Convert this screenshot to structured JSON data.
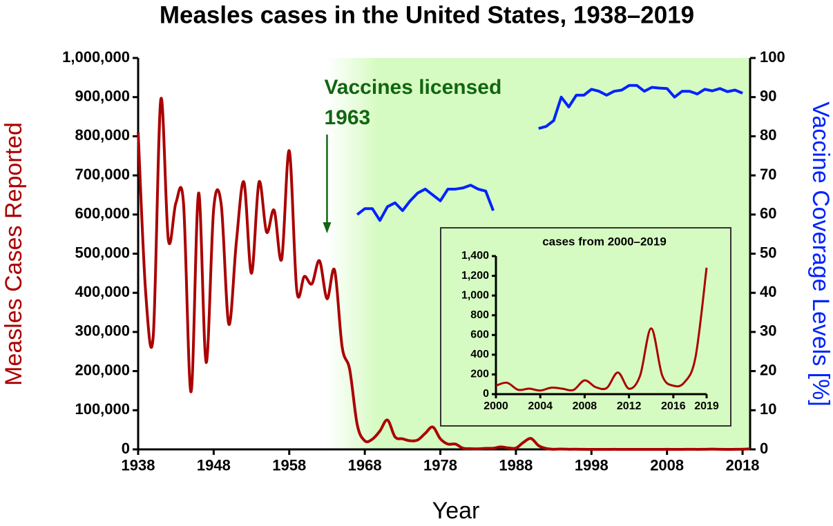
{
  "chart_data": [
    {
      "type": "line",
      "title": "Measles cases in the United States, 1938–2019",
      "xlabel": "Year",
      "ylabel": "Measles Cases Reported",
      "y2label": "Vaccine Coverage Levels [%]",
      "annotation": {
        "text": "Vaccines licensed",
        "year": 1963
      },
      "x": [
        1938,
        1939,
        1940,
        1941,
        1942,
        1943,
        1944,
        1945,
        1946,
        1947,
        1948,
        1949,
        1950,
        1951,
        1952,
        1953,
        1954,
        1955,
        1956,
        1957,
        1958,
        1959,
        1960,
        1961,
        1962,
        1963,
        1964,
        1965,
        1966,
        1967,
        1968,
        1969,
        1970,
        1971,
        1972,
        1973,
        1974,
        1975,
        1976,
        1977,
        1978,
        1979,
        1980,
        1981,
        1982,
        1983,
        1984,
        1985,
        1986,
        1987,
        1988,
        1989,
        1990,
        1991,
        1992,
        1993,
        1994,
        1995,
        1996,
        1997,
        1998,
        1999,
        2000,
        2001,
        2002,
        2003,
        2004,
        2005,
        2006,
        2007,
        2008,
        2009,
        2010,
        2011,
        2012,
        2013,
        2014,
        2015,
        2016,
        2017,
        2018,
        2019
      ],
      "xlim": [
        1938,
        2019
      ],
      "xticks": [
        1938,
        1948,
        1958,
        1968,
        1978,
        1988,
        1998,
        2008,
        2018
      ],
      "ylim": [
        0,
        1000000
      ],
      "yticks": [
        0,
        {
          "value": 100000,
          "label": "100,000"
        },
        {
          "value": 200000,
          "label": "200,000"
        },
        {
          "value": 300000,
          "label": "300,000"
        },
        {
          "value": 400000,
          "label": "400,000"
        },
        {
          "value": 500000,
          "label": "500,000"
        },
        {
          "value": 600000,
          "label": "600,000"
        },
        {
          "value": 700000,
          "label": "700,000"
        },
        {
          "value": 800000,
          "label": "800,000"
        },
        {
          "value": 900000,
          "label": "900,000"
        },
        {
          "value": 1000000,
          "label": "1,000,000"
        }
      ],
      "y2lim": [
        0,
        100
      ],
      "y2ticks": [
        0,
        10,
        20,
        30,
        40,
        50,
        60,
        70,
        80,
        90,
        100
      ],
      "series": [
        {
          "color": "#aa0000",
          "values": [
            810000,
            400000,
            290000,
            894000,
            535000,
            630000,
            630000,
            147000,
            655000,
            222000,
            615000,
            625000,
            320000,
            530000,
            683000,
            450000,
            683000,
            555000,
            611000,
            486000,
            763000,
            406000,
            442000,
            423000,
            482000,
            385000,
            458000,
            262000,
            204000,
            63000,
            22000,
            26000,
            47000,
            75000,
            32000,
            27000,
            22000,
            24000,
            41000,
            57000,
            27000,
            13600,
            13500,
            3000,
            1700,
            1500,
            2600,
            2800,
            6300,
            3700,
            3400,
            18000,
            27800,
            9600,
            2200,
            300,
            960,
            300,
            500,
            138,
            100,
            100,
            86,
            116,
            44,
            56,
            37,
            66,
            55,
            43,
            140,
            71,
            63,
            220,
            55,
            187,
            667,
            188,
            86,
            120,
            375,
            1282
          ]
        },
        {
          "color": "#0022ff",
          "axis": "y2",
          "values": [
            null,
            null,
            null,
            null,
            null,
            null,
            null,
            null,
            null,
            null,
            null,
            null,
            null,
            null,
            null,
            null,
            null,
            null,
            null,
            null,
            null,
            null,
            null,
            null,
            null,
            null,
            null,
            null,
            null,
            60,
            61.5,
            61.5,
            58.5,
            62,
            63,
            61,
            63.5,
            65.5,
            66.5,
            65,
            63.5,
            66.5,
            66.5,
            66.8,
            67.5,
            66.5,
            66,
            61,
            null,
            null,
            null,
            null,
            null,
            82,
            82.5,
            84,
            90,
            87.5,
            90.5,
            90.5,
            92,
            91.5,
            90.5,
            91.5,
            91.8,
            93,
            93,
            91.5,
            92.5,
            92.3,
            92.2,
            90,
            91.5,
            91.5,
            90.8,
            92,
            91.6,
            92.2,
            91.4,
            91.8,
            91,
            null
          ]
        }
      ]
    },
    {
      "type": "line",
      "title": "cases from 2000–2019",
      "x": [
        2000,
        2001,
        2002,
        2003,
        2004,
        2005,
        2006,
        2007,
        2008,
        2009,
        2010,
        2011,
        2012,
        2013,
        2014,
        2015,
        2016,
        2017,
        2018,
        2019
      ],
      "xlim": [
        2000,
        2019
      ],
      "xticks": [
        2000,
        2004,
        2008,
        2012,
        2016,
        2019
      ],
      "ylim": [
        0,
        1400
      ],
      "yticks": [
        0,
        200,
        400,
        600,
        800,
        {
          "value": 1000,
          "label": "1,000"
        },
        {
          "value": 1200,
          "label": "1,200"
        },
        {
          "value": 1400,
          "label": "1,400"
        }
      ],
      "series": [
        {
          "color": "#aa0000",
          "values": [
            86,
            116,
            44,
            56,
            37,
            66,
            55,
            43,
            140,
            71,
            63,
            220,
            55,
            187,
            667,
            188,
            86,
            120,
            375,
            1282
          ]
        }
      ]
    }
  ]
}
